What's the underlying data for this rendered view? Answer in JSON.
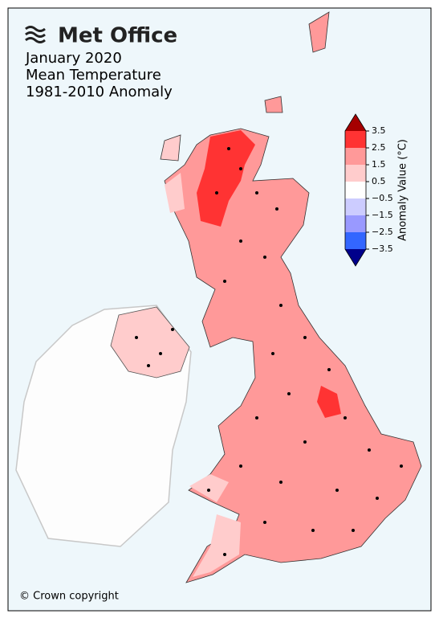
{
  "logo": "Met Office",
  "title_lines": [
    "January 2020",
    "Mean Temperature",
    "1981-2010 Anomaly"
  ],
  "colorbar": {
    "label": "Anomaly Value (°C)",
    "ticks": [
      3.5,
      2.5,
      1.5,
      0.5,
      {
        "value": -0.5,
        "label": "−0.5"
      },
      {
        "value": -1.5,
        "label": "−1.5"
      },
      {
        "value": -2.5,
        "label": "−2.5"
      },
      {
        "value": -3.5,
        "label": "−3.5"
      }
    ],
    "colors": [
      "#ff3333",
      "#ff9999",
      "#ffcccc",
      "#ffffff",
      "#ccccff",
      "#9999ff",
      "#3366ff"
    ],
    "over_color": "#a50000",
    "under_color": "#00008b"
  },
  "copyright": "© Crown copyright"
}
